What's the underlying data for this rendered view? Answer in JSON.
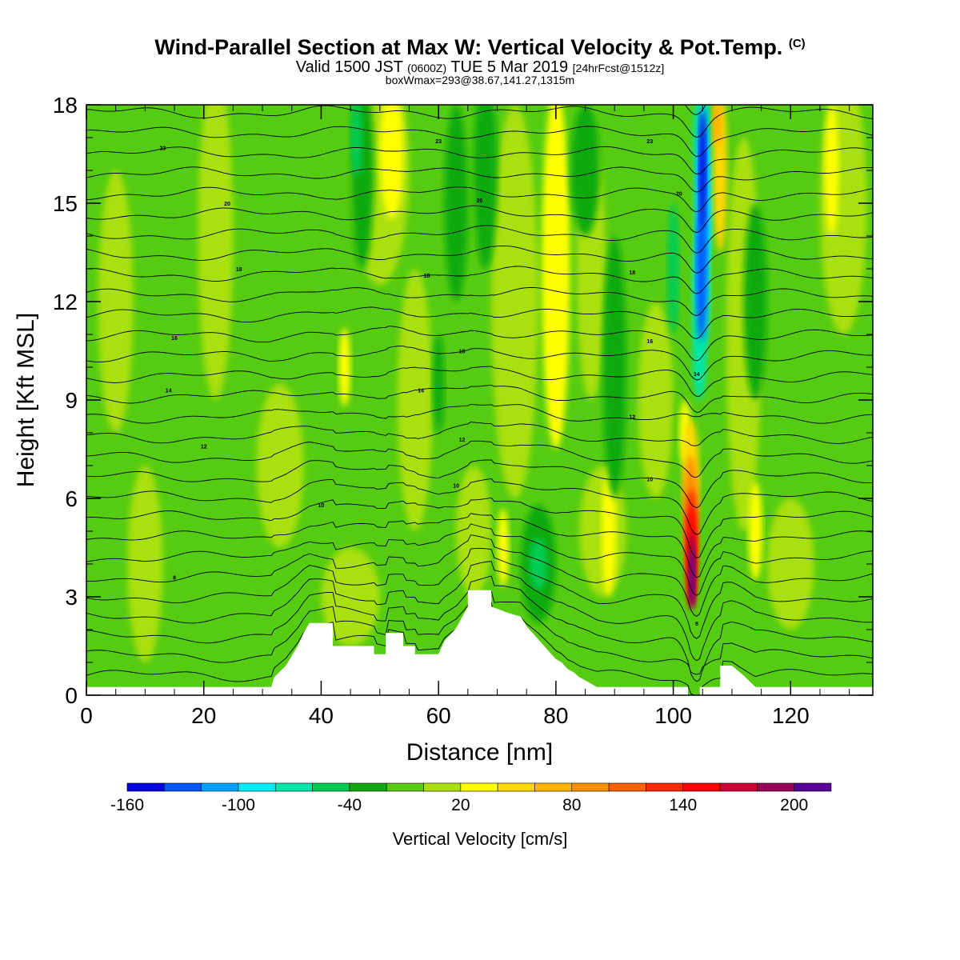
{
  "title": {
    "main": "Wind-Parallel Section at Max W: Vertical Velocity & Pot.Temp.",
    "copyright": "(C)",
    "valid_time": "Valid 1500 JST",
    "utc": "(0600Z)",
    "date": "TUE 5 Mar 2019",
    "forecast": "[24hrFcst@1512z]",
    "box_info": "boxWmax=293@38.67,141.27,1315m"
  },
  "colors": {
    "levels": [
      "#0000e0",
      "#0055ff",
      "#00a0ff",
      "#00eeff",
      "#00e6aa",
      "#00cc55",
      "#10aa10",
      "#55cc11",
      "#aae010",
      "#ffff00",
      "#ffd800",
      "#ffb400",
      "#ff9000",
      "#ff6000",
      "#ff2800",
      "#ff0000",
      "#cc0033",
      "#990055",
      "#5a0099"
    ],
    "terrain": "#ffffff",
    "isentropes": "#000000"
  },
  "chart_data": {
    "type": "heatmap",
    "xlabel": "Distance [nm]",
    "ylabel": "Height [Kft MSL]",
    "xlim": [
      0,
      134
    ],
    "ylim": [
      0,
      18
    ],
    "x_ticks": [
      0,
      20,
      40,
      60,
      80,
      100,
      120
    ],
    "y_ticks": [
      0,
      3,
      6,
      9,
      12,
      15,
      18
    ],
    "colorbar": {
      "label": "Vertical Velocity [cm/s]",
      "min": -160,
      "max": 220,
      "step": 20,
      "tick_labels": [
        "-160",
        "-100",
        "-40",
        "20",
        "80",
        "140",
        "200"
      ]
    },
    "field_max_cm_s": 293,
    "features": [
      {
        "type": "updraft",
        "x_nm": 103,
        "z_kft": [
          1,
          8
        ],
        "peak_cm_s": 220
      },
      {
        "type": "downdraft",
        "x_nm": 105,
        "z_kft": [
          8,
          18
        ],
        "min_cm_s": -160
      },
      {
        "type": "updraft",
        "x_nm": 80,
        "z_kft": [
          9,
          18
        ],
        "peak_cm_s": 20
      },
      {
        "type": "updraft",
        "x_nm": 52,
        "z_kft": [
          13,
          18
        ],
        "peak_cm_s": 20
      },
      {
        "type": "downdraft",
        "x_nm": 78,
        "z_kft": [
          2.5,
          6
        ],
        "min_cm_s": -60
      }
    ],
    "terrain_profile": {
      "x_nm": [
        0,
        31.5,
        32,
        34,
        35,
        36,
        37,
        38,
        42,
        42,
        49,
        49,
        51,
        51,
        54,
        54,
        56,
        56,
        60,
        61,
        63,
        65,
        65,
        69,
        69,
        72,
        74,
        75,
        76,
        77,
        78,
        79,
        80,
        81,
        82,
        83,
        84,
        85,
        86,
        87,
        102.5,
        102.5,
        104.5,
        104.5,
        108,
        108,
        110,
        112,
        114,
        134
      ],
      "z_kft": [
        0.25,
        0.25,
        0.55,
        0.9,
        1.2,
        1.5,
        1.9,
        2.2,
        2.2,
        1.5,
        1.5,
        1.25,
        1.25,
        1.9,
        1.9,
        1.5,
        1.5,
        1.25,
        1.25,
        1.65,
        2.05,
        2.7,
        3.2,
        3.2,
        2.7,
        2.5,
        2.4,
        2.1,
        1.9,
        1.7,
        1.5,
        1.3,
        1.1,
        1.0,
        0.8,
        0.7,
        0.55,
        0.45,
        0.35,
        0.25,
        0.25,
        0,
        0,
        0.25,
        0.25,
        0.9,
        0.9,
        0.6,
        0.25,
        0.25
      ]
    },
    "isentrope_labels": [
      {
        "text": "23",
        "x_nm": 13,
        "z_kft": 16.7
      },
      {
        "text": "23",
        "x_nm": 60,
        "z_kft": 16.9
      },
      {
        "text": "23",
        "x_nm": 96,
        "z_kft": 16.9
      },
      {
        "text": "20",
        "x_nm": 24,
        "z_kft": 15.0
      },
      {
        "text": "20",
        "x_nm": 67,
        "z_kft": 15.1
      },
      {
        "text": "20",
        "x_nm": 101,
        "z_kft": 15.3
      },
      {
        "text": "18",
        "x_nm": 26,
        "z_kft": 13.0
      },
      {
        "text": "18",
        "x_nm": 58,
        "z_kft": 12.8
      },
      {
        "text": "18",
        "x_nm": 93,
        "z_kft": 12.9
      },
      {
        "text": "16",
        "x_nm": 15,
        "z_kft": 10.9
      },
      {
        "text": "16",
        "x_nm": 64,
        "z_kft": 10.5
      },
      {
        "text": "16",
        "x_nm": 96,
        "z_kft": 10.8
      },
      {
        "text": "14",
        "x_nm": 14,
        "z_kft": 9.3
      },
      {
        "text": "14",
        "x_nm": 57,
        "z_kft": 9.3
      },
      {
        "text": "14",
        "x_nm": 104,
        "z_kft": 9.8
      },
      {
        "text": "12",
        "x_nm": 20,
        "z_kft": 7.6
      },
      {
        "text": "12",
        "x_nm": 64,
        "z_kft": 7.8
      },
      {
        "text": "12",
        "x_nm": 93,
        "z_kft": 8.5
      },
      {
        "text": "10",
        "x_nm": 63,
        "z_kft": 6.4
      },
      {
        "text": "10",
        "x_nm": 96,
        "z_kft": 6.6
      },
      {
        "text": "10",
        "x_nm": 40,
        "z_kft": 5.8
      },
      {
        "text": "8",
        "x_nm": 15,
        "z_kft": 3.6
      },
      {
        "text": "8",
        "x_nm": 104,
        "z_kft": 2.2
      }
    ]
  }
}
